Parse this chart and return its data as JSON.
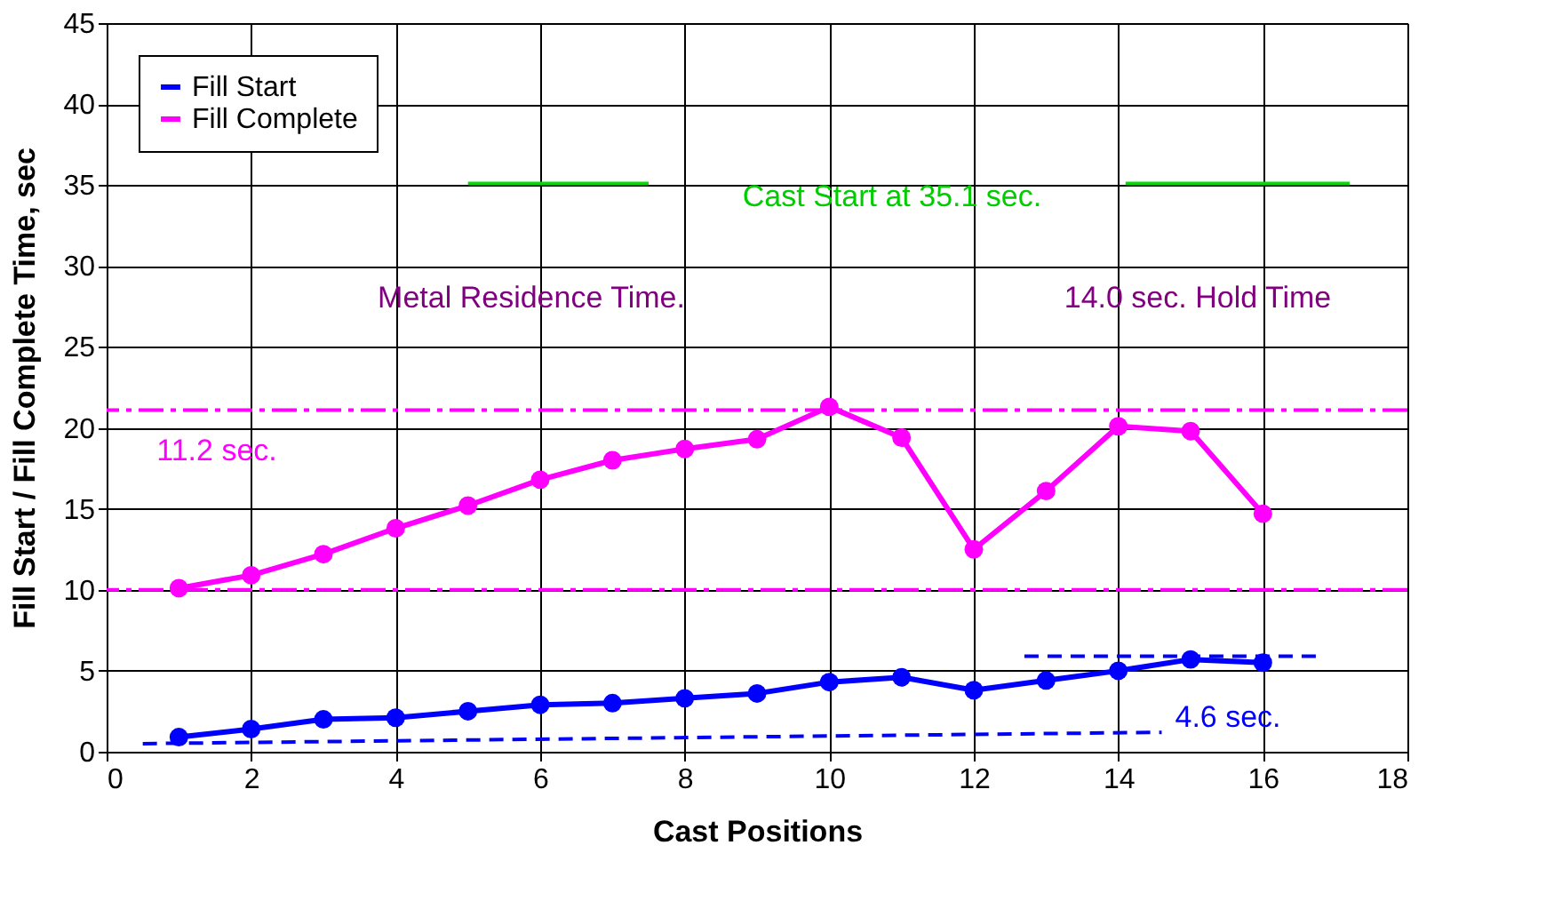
{
  "chart_data": {
    "type": "line",
    "xlabel": "Cast Positions",
    "ylabel": "Fill Start / Fill Complete Time, sec",
    "x": [
      1,
      2,
      3,
      4,
      5,
      6,
      7,
      8,
      9,
      10,
      11,
      12,
      13,
      14,
      15,
      16
    ],
    "series": [
      {
        "name": "Fill Start",
        "color": "#0000ff",
        "values": [
          0.9,
          1.4,
          2.0,
          2.1,
          2.5,
          2.9,
          3.0,
          3.3,
          3.6,
          4.3,
          4.6,
          3.8,
          4.4,
          5.0,
          5.7,
          5.5
        ]
      },
      {
        "name": "Fill Complete",
        "color": "#ff00ff",
        "values": [
          10.1,
          10.9,
          12.2,
          13.8,
          15.2,
          16.8,
          18.0,
          18.7,
          19.3,
          21.3,
          19.4,
          12.5,
          16.1,
          20.1,
          19.8,
          14.7
        ]
      },
      {
        "type": "line",
        "color": "#0000ff",
        "marker": "none",
        "line_style": "dashed",
        "x": [
          0.5,
          14.6
        ],
        "values": [
          0.5,
          1.2
        ]
      },
      {
        "type": "line",
        "color": "#0000ff",
        "marker": "none",
        "line_style": "dashed",
        "x": [
          12.7,
          16.8
        ],
        "values": [
          5.9,
          5.9
        ]
      },
      {
        "type": "line",
        "color": "#00dd00",
        "marker": "none",
        "line_style": "solid",
        "x": [
          5,
          7.5
        ],
        "values": [
          35.1,
          35.1
        ]
      },
      {
        "type": "line",
        "color": "#00dd00",
        "marker": "none",
        "line_style": "solid",
        "x": [
          14.1,
          17.2
        ],
        "values": [
          35.1,
          35.1
        ]
      }
    ],
    "ref_lines": [
      {
        "axis": "y",
        "value": 21.1,
        "color": "#ff00ff",
        "line_style": "dashdot"
      },
      {
        "axis": "y",
        "value": 10,
        "color": "#ff00ff",
        "line_style": "dashdot"
      }
    ],
    "annotations": [
      "Cast Start at 35.1 sec.",
      "Metal Residence Time.",
      "14.0 sec. Hold Time",
      "11.2 sec.",
      "4.6 sec."
    ],
    "xlim": [
      0,
      18
    ],
    "xticks": [
      0,
      2,
      4,
      6,
      8,
      10,
      12,
      14,
      16,
      18
    ],
    "ylim": [
      0,
      45
    ],
    "yticks": [
      0,
      5,
      10,
      15,
      20,
      25,
      30,
      35,
      40,
      45
    ],
    "grid": true,
    "legend": "top left",
    "marker": "circle",
    "line_style": "solid"
  }
}
